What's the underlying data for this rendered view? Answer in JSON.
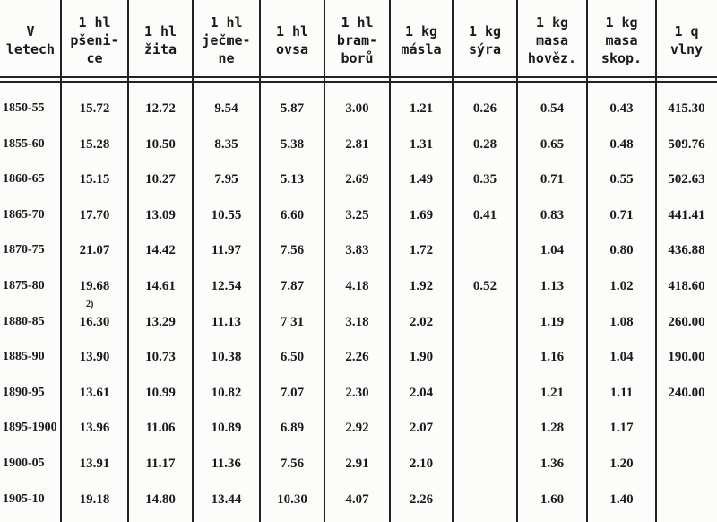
{
  "table": {
    "headers": [
      [
        "V",
        "letech"
      ],
      [
        "1 hl",
        "pšeni-",
        "ce"
      ],
      [
        "1 hl",
        "žita"
      ],
      [
        "1 hl",
        "ječme-",
        "ne"
      ],
      [
        "1 hl",
        "ovsa"
      ],
      [
        "1 hl",
        "bram-",
        "borů"
      ],
      [
        "1 kg",
        "másla"
      ],
      [
        "1 kg",
        "sýra"
      ],
      [
        "1 kg",
        "masa",
        "hověz."
      ],
      [
        "1 kg",
        "masa",
        "skop."
      ],
      [
        "1 q",
        "vlny"
      ]
    ],
    "rows": [
      [
        "1850-55",
        "15.72",
        "12.72",
        "9.54",
        "5.87",
        "3.00",
        "1.21",
        "0.26",
        "0.54",
        "0.43",
        "415.30"
      ],
      [
        "1855-60",
        "15.28",
        "10.50",
        "8.35",
        "5.38",
        "2.81",
        "1.31",
        "0.28",
        "0.65",
        "0.48",
        "509.76"
      ],
      [
        "1860-65",
        "15.15",
        "10.27",
        "7.95",
        "5.13",
        "2.69",
        "1.49",
        "0.35",
        "0.71",
        "0.55",
        "502.63"
      ],
      [
        "1865-70",
        "17.70",
        "13.09",
        "10.55",
        "6.60",
        "3.25",
        "1.69",
        "0.41",
        "0.83",
        "0.71",
        "441.41"
      ],
      [
        "1870-75",
        "21.07",
        "14.42",
        "11.97",
        "7.56",
        "3.83",
        "1.72",
        null,
        "1.04",
        "0.80",
        "436.88"
      ],
      [
        "1875-80",
        "19.68",
        "14.61",
        "12.54",
        "7.87",
        "4.18",
        "1.92",
        "0.52",
        "1.13",
        "1.02",
        "418.60"
      ],
      [
        "1880-85",
        {
          "mark": "2)",
          "text": "16.30"
        },
        "13.29",
        "11.13",
        "7 31",
        "3.18",
        "2.02",
        null,
        "1.19",
        "1.08",
        "260.00"
      ],
      [
        "1885-90",
        "13.90",
        "10.73",
        "10.38",
        "6.50",
        "2.26",
        "1.90",
        null,
        "1.16",
        "1.04",
        "190.00"
      ],
      [
        "1890-95",
        "13.61",
        "10.99",
        "10.82",
        "7.07",
        "2.30",
        "2.04",
        null,
        "1.21",
        "1.11",
        "240.00"
      ],
      [
        "1895-1900",
        "13.96",
        "11.06",
        "10.89",
        "6.89",
        "2.92",
        "2.07",
        null,
        "1.28",
        "1.17",
        null
      ],
      [
        "1900-05",
        "13.91",
        "11.17",
        "11.36",
        "7.56",
        "2.91",
        "2.10",
        null,
        "1.36",
        "1.20",
        null
      ],
      [
        "1905-10",
        "19.18",
        "14.80",
        "13.44",
        "10.30",
        "4.07",
        "2.26",
        null,
        "1.60",
        "1.40",
        null
      ]
    ]
  }
}
